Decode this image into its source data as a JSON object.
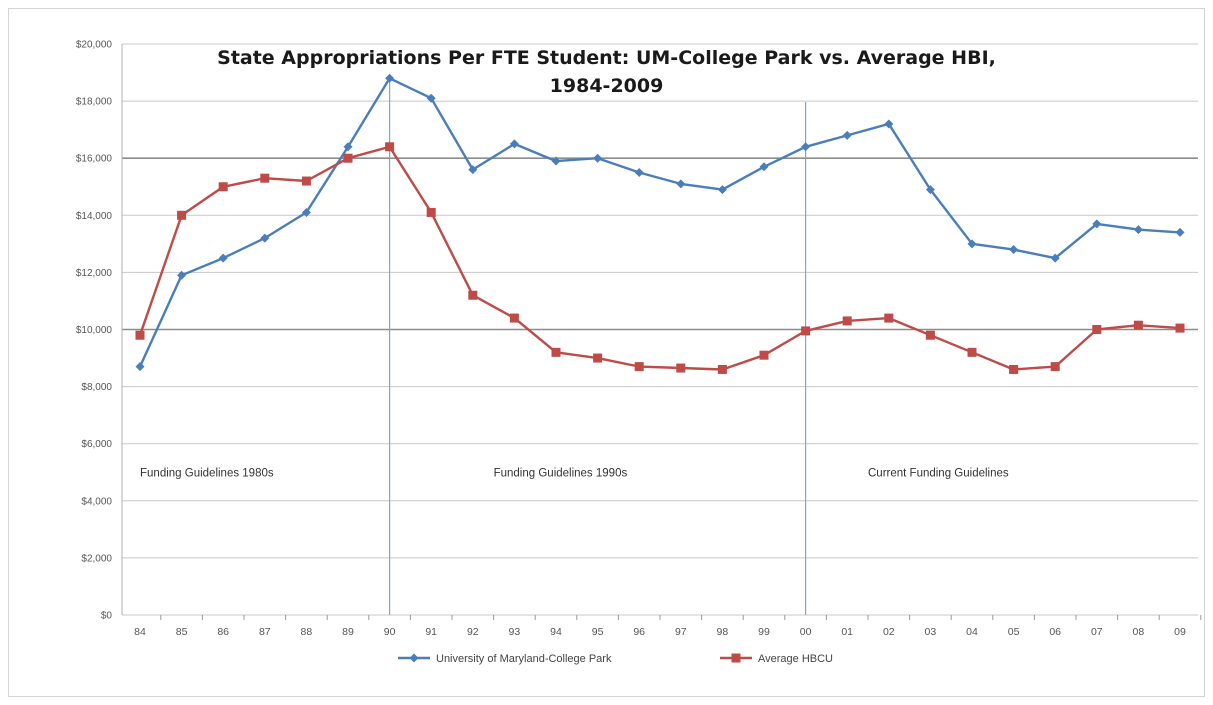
{
  "chart_data": {
    "type": "line",
    "title": "State Appropriations Per FTE Student: UM-College Park vs. Average HBI,\n1984-2009",
    "xlabel": "",
    "ylabel": "",
    "categories": [
      "84",
      "85",
      "86",
      "87",
      "88",
      "89",
      "90",
      "91",
      "92",
      "93",
      "94",
      "95",
      "96",
      "97",
      "98",
      "99",
      "00",
      "01",
      "02",
      "03",
      "04",
      "05",
      "06",
      "07",
      "08",
      "09"
    ],
    "ylim": [
      0,
      20000
    ],
    "y_tick_labels": [
      "$0",
      "$2,000",
      "$4,000",
      "$6,000",
      "$8,000",
      "$10,000",
      "$12,000",
      "$14,000",
      "$16,000",
      "$18,000",
      "$20,000"
    ],
    "y_tick_values": [
      0,
      2000,
      4000,
      6000,
      8000,
      10000,
      12000,
      14000,
      16000,
      18000,
      20000
    ],
    "grid": true,
    "legend_position": "bottom",
    "series": [
      {
        "name": "University of Maryland-College Park",
        "color": "#4a7ebb",
        "marker": "diamond",
        "values": [
          8700,
          11900,
          12500,
          13200,
          14100,
          16400,
          18800,
          18100,
          15600,
          16500,
          15900,
          16000,
          15500,
          15100,
          14900,
          15700,
          16400,
          16800,
          17200,
          14900,
          13000,
          12800,
          12500,
          13700,
          13500,
          13400
        ]
      },
      {
        "name": "Average HBCU",
        "color": "#be4b48",
        "marker": "square",
        "values": [
          9800,
          14000,
          15000,
          15300,
          15200,
          16000,
          16400,
          14100,
          11200,
          10400,
          9200,
          9000,
          8700,
          8650,
          8600,
          9100,
          9950,
          10300,
          10400,
          9800,
          9200,
          8600,
          8700,
          10000,
          10150,
          10050
        ]
      }
    ],
    "emphasized_gridlines": [
      10000,
      16000
    ],
    "vertical_markers": [
      {
        "at": "90",
        "y_from": 18800,
        "y_to": 0
      },
      {
        "at": "00",
        "y_from": 18000,
        "y_to": 0
      }
    ],
    "annotations": [
      {
        "text": "Funding Guidelines 1980s",
        "at": "84",
        "y": 5000
      },
      {
        "text": "Funding Guidelines 1990s",
        "at": "92.5",
        "y": 5000
      },
      {
        "text": "Current Funding Guidelines",
        "at": "01.5",
        "y": 5000
      }
    ]
  }
}
